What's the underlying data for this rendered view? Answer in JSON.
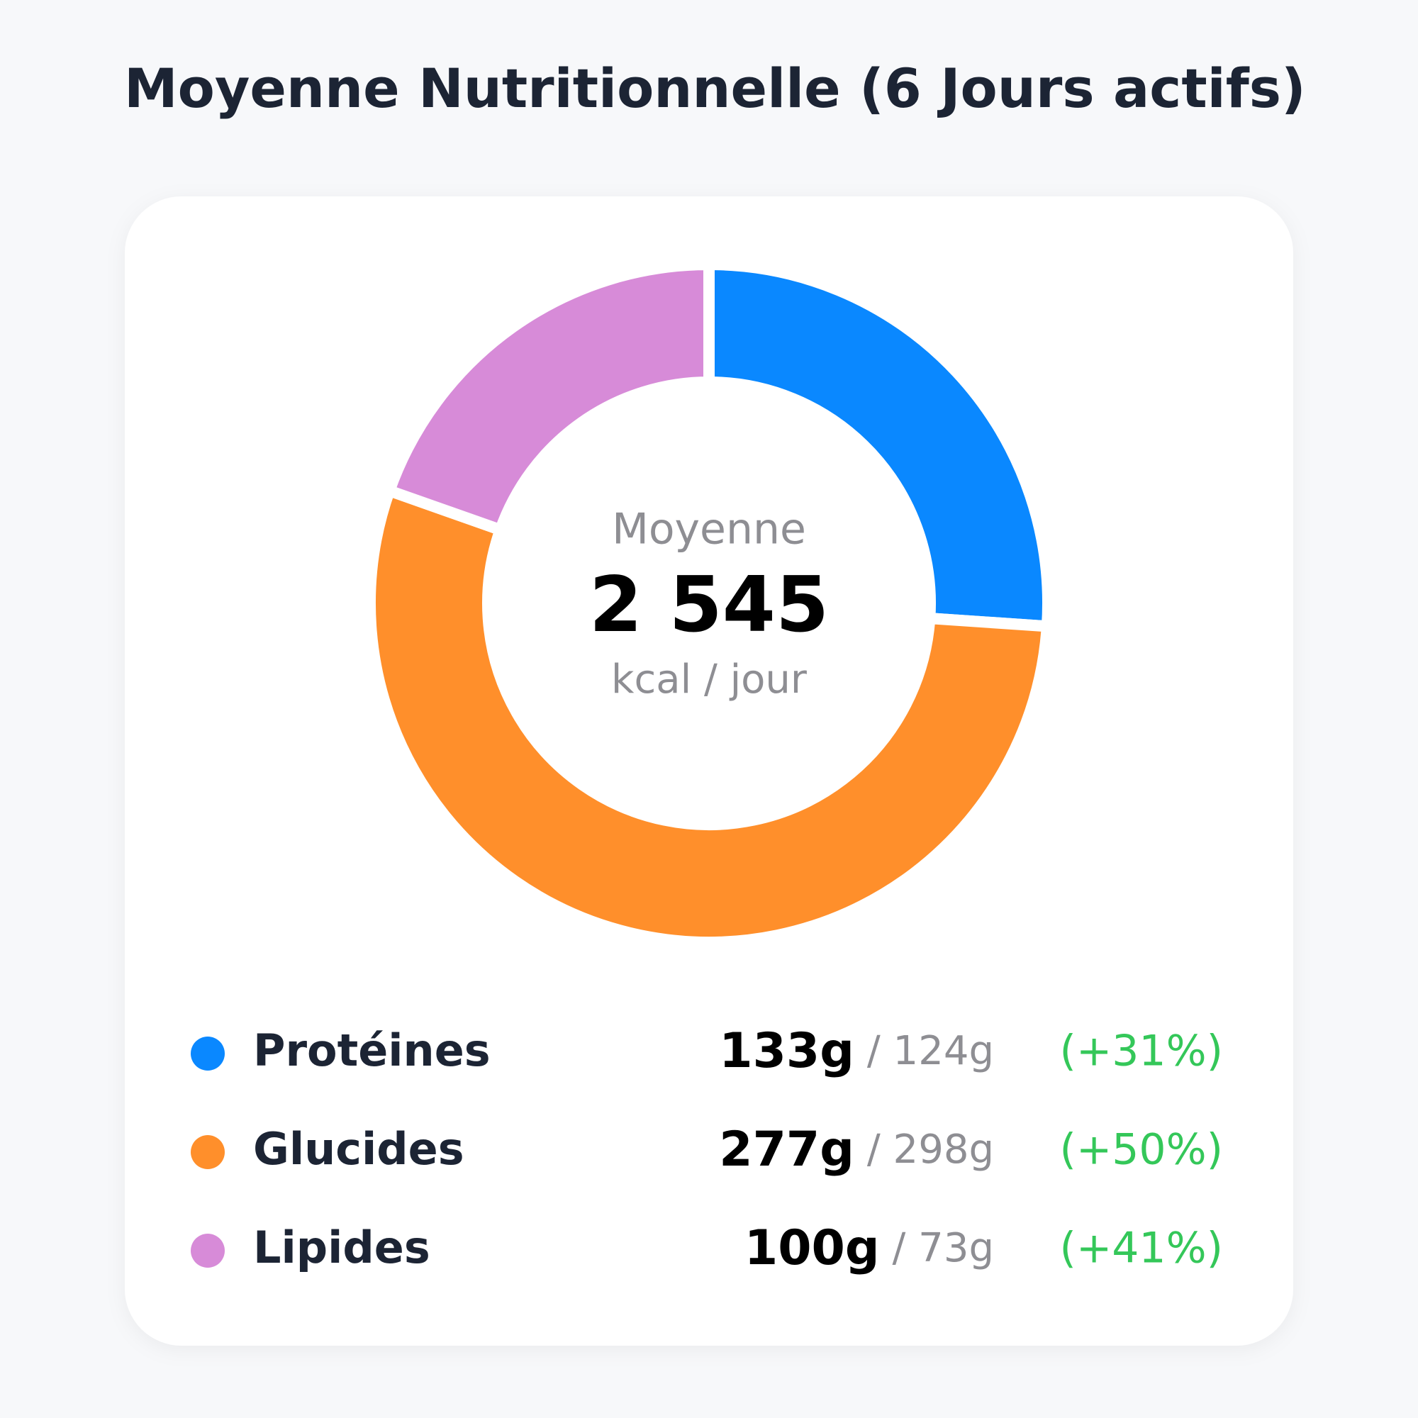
{
  "chart_data": {
    "type": "donut",
    "title": "Moyenne Nutritionnelle (6 Jours actifs)",
    "center_label": "Moyenne",
    "total": {
      "value": 2545,
      "label": "2 545"
    },
    "center_unit": "kcal / jour",
    "categories": [
      "Protéines",
      "Glucides",
      "Lipides"
    ],
    "values": [
      133,
      277,
      100
    ],
    "value_labels": [
      "133g",
      "277g",
      "100g"
    ],
    "colors": [
      "#0a88ff",
      "#ff8f2b",
      "#d78bd8"
    ],
    "targets": [
      124,
      298,
      73
    ],
    "target_labels": [
      "/ 124g",
      "/ 298g",
      "/ 73g"
    ],
    "deltas": [
      31,
      50,
      41
    ],
    "delta_labels": [
      "(+31%)",
      "(+50%)",
      "(+41%)"
    ]
  }
}
